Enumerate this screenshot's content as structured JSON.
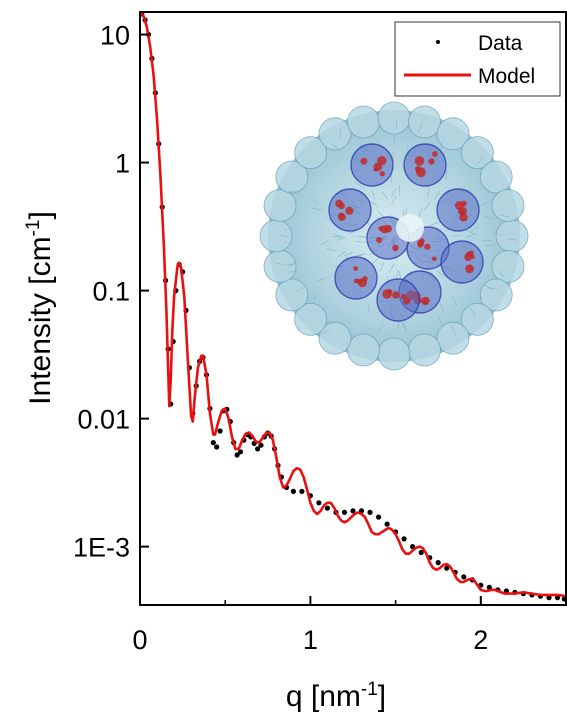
{
  "chart_data": {
    "type": "line",
    "xlabel": "q [nm",
    "xlabel_sup": "-1",
    "xlabel_end": "]",
    "ylabel": "Intensity [cm",
    "ylabel_sup": "-1",
    "ylabel_end": "]",
    "x_scale": "linear",
    "y_scale": "log",
    "xlim": [
      0,
      2.5
    ],
    "ylim": [
      0.00035,
      15
    ],
    "x_ticks": [
      0,
      1,
      2
    ],
    "x_tick_labels": [
      "0",
      "1",
      "2"
    ],
    "y_ticks": [
      0.001,
      0.01,
      0.1,
      1,
      10
    ],
    "y_tick_labels": [
      "1E-3",
      "0.01",
      "0.1",
      "1",
      "10"
    ],
    "grid": false,
    "legend": "top-right",
    "series": [
      {
        "name": "Data",
        "style": "points",
        "color": "#000000",
        "points": [
          [
            0.01,
            14.5
          ],
          [
            0.03,
            13
          ],
          [
            0.05,
            10
          ],
          [
            0.07,
            6.5
          ],
          [
            0.09,
            3.5
          ],
          [
            0.11,
            1.4
          ],
          [
            0.13,
            0.45
          ],
          [
            0.15,
            0.12
          ],
          [
            0.165,
            0.035
          ],
          [
            0.18,
            0.013
          ],
          [
            0.195,
            0.04
          ],
          [
            0.21,
            0.1
          ],
          [
            0.23,
            0.16
          ],
          [
            0.25,
            0.14
          ],
          [
            0.27,
            0.07
          ],
          [
            0.29,
            0.025
          ],
          [
            0.31,
            0.011
          ],
          [
            0.33,
            0.018
          ],
          [
            0.35,
            0.028
          ],
          [
            0.37,
            0.03
          ],
          [
            0.39,
            0.022
          ],
          [
            0.41,
            0.012
          ],
          [
            0.43,
            0.0065
          ],
          [
            0.45,
            0.006
          ],
          [
            0.47,
            0.008
          ],
          [
            0.49,
            0.0115
          ],
          [
            0.51,
            0.0118
          ],
          [
            0.53,
            0.0095
          ],
          [
            0.55,
            0.0065
          ],
          [
            0.57,
            0.0052
          ],
          [
            0.59,
            0.0055
          ],
          [
            0.61,
            0.0068
          ],
          [
            0.63,
            0.0075
          ],
          [
            0.65,
            0.0072
          ],
          [
            0.67,
            0.0064
          ],
          [
            0.69,
            0.0058
          ],
          [
            0.71,
            0.0062
          ],
          [
            0.73,
            0.0072
          ],
          [
            0.75,
            0.0077
          ],
          [
            0.77,
            0.0073
          ],
          [
            0.79,
            0.0058
          ],
          [
            0.81,
            0.0043
          ],
          [
            0.83,
            0.0035
          ],
          [
            0.86,
            0.0029
          ],
          [
            0.9,
            0.0027
          ],
          [
            0.95,
            0.0027
          ],
          [
            1.0,
            0.0025
          ],
          [
            1.05,
            0.0022
          ],
          [
            1.1,
            0.002
          ],
          [
            1.15,
            0.00185
          ],
          [
            1.2,
            0.00185
          ],
          [
            1.25,
            0.0019
          ],
          [
            1.3,
            0.0019
          ],
          [
            1.35,
            0.00185
          ],
          [
            1.4,
            0.0017
          ],
          [
            1.45,
            0.0015
          ],
          [
            1.5,
            0.0013
          ],
          [
            1.55,
            0.00115
          ],
          [
            1.6,
            0.001
          ],
          [
            1.65,
            0.0009
          ],
          [
            1.7,
            0.00082
          ],
          [
            1.75,
            0.00075
          ],
          [
            1.8,
            0.00068
          ],
          [
            1.85,
            0.00063
          ],
          [
            1.9,
            0.00058
          ],
          [
            1.95,
            0.00055
          ],
          [
            2.0,
            0.0005
          ],
          [
            2.05,
            0.00048
          ],
          [
            2.1,
            0.00046
          ],
          [
            2.15,
            0.00045
          ],
          [
            2.2,
            0.00044
          ],
          [
            2.25,
            0.00043
          ],
          [
            2.3,
            0.00042
          ],
          [
            2.35,
            0.00041
          ],
          [
            2.4,
            0.0004
          ],
          [
            2.45,
            0.0004
          ],
          [
            2.49,
            0.00039
          ]
        ]
      },
      {
        "name": "Model",
        "style": "line",
        "color": "#e8110f",
        "points": [
          [
            0.0,
            15
          ],
          [
            0.02,
            14
          ],
          [
            0.04,
            11.5
          ],
          [
            0.06,
            8
          ],
          [
            0.08,
            4.8
          ],
          [
            0.1,
            2.2
          ],
          [
            0.12,
            0.8
          ],
          [
            0.14,
            0.22
          ],
          [
            0.155,
            0.07
          ],
          [
            0.165,
            0.025
          ],
          [
            0.172,
            0.0125
          ],
          [
            0.18,
            0.02
          ],
          [
            0.19,
            0.05
          ],
          [
            0.2,
            0.09
          ],
          [
            0.22,
            0.155
          ],
          [
            0.23,
            0.165
          ],
          [
            0.24,
            0.155
          ],
          [
            0.26,
            0.09
          ],
          [
            0.28,
            0.03
          ],
          [
            0.3,
            0.0105
          ],
          [
            0.31,
            0.0095
          ],
          [
            0.32,
            0.014
          ],
          [
            0.34,
            0.025
          ],
          [
            0.36,
            0.031
          ],
          [
            0.37,
            0.031
          ],
          [
            0.39,
            0.022
          ],
          [
            0.41,
            0.011
          ],
          [
            0.43,
            0.0075
          ],
          [
            0.44,
            0.0075
          ],
          [
            0.46,
            0.0095
          ],
          [
            0.48,
            0.0115
          ],
          [
            0.5,
            0.012
          ],
          [
            0.52,
            0.01
          ],
          [
            0.54,
            0.0072
          ],
          [
            0.56,
            0.0058
          ],
          [
            0.58,
            0.0058
          ],
          [
            0.6,
            0.0068
          ],
          [
            0.62,
            0.0076
          ],
          [
            0.64,
            0.0078
          ],
          [
            0.66,
            0.0073
          ],
          [
            0.68,
            0.0066
          ],
          [
            0.7,
            0.0065
          ],
          [
            0.72,
            0.0071
          ],
          [
            0.74,
            0.0077
          ],
          [
            0.76,
            0.0078
          ],
          [
            0.78,
            0.0068
          ],
          [
            0.8,
            0.005
          ],
          [
            0.82,
            0.0035
          ],
          [
            0.84,
            0.0029
          ],
          [
            0.86,
            0.003
          ],
          [
            0.88,
            0.0034
          ],
          [
            0.9,
            0.0039
          ],
          [
            0.92,
            0.0041
          ],
          [
            0.94,
            0.004
          ],
          [
            0.96,
            0.0035
          ],
          [
            0.98,
            0.0028
          ],
          [
            1.0,
            0.0022
          ],
          [
            1.02,
            0.0019
          ],
          [
            1.04,
            0.0018
          ],
          [
            1.06,
            0.0019
          ],
          [
            1.08,
            0.0021
          ],
          [
            1.1,
            0.0022
          ],
          [
            1.12,
            0.0022
          ],
          [
            1.14,
            0.002
          ],
          [
            1.16,
            0.00175
          ],
          [
            1.18,
            0.0016
          ],
          [
            1.2,
            0.00155
          ],
          [
            1.22,
            0.0016
          ],
          [
            1.24,
            0.0017
          ],
          [
            1.26,
            0.0018
          ],
          [
            1.28,
            0.00185
          ],
          [
            1.3,
            0.0018
          ],
          [
            1.32,
            0.0017
          ],
          [
            1.34,
            0.0015
          ],
          [
            1.36,
            0.0013
          ],
          [
            1.38,
            0.00125
          ],
          [
            1.4,
            0.00125
          ],
          [
            1.42,
            0.0013
          ],
          [
            1.44,
            0.00135
          ],
          [
            1.46,
            0.0014
          ],
          [
            1.48,
            0.00135
          ],
          [
            1.5,
            0.00125
          ],
          [
            1.52,
            0.0011
          ],
          [
            1.54,
            0.00095
          ],
          [
            1.56,
            0.00088
          ],
          [
            1.58,
            0.00088
          ],
          [
            1.6,
            0.00093
          ],
          [
            1.62,
            0.00098
          ],
          [
            1.64,
            0.001
          ],
          [
            1.66,
            0.00097
          ],
          [
            1.68,
            0.00088
          ],
          [
            1.7,
            0.00075
          ],
          [
            1.72,
            0.00068
          ],
          [
            1.74,
            0.00066
          ],
          [
            1.76,
            0.00068
          ],
          [
            1.78,
            0.00072
          ],
          [
            1.8,
            0.00073
          ],
          [
            1.82,
            0.0007
          ],
          [
            1.84,
            0.00063
          ],
          [
            1.86,
            0.00056
          ],
          [
            1.88,
            0.00053
          ],
          [
            1.9,
            0.00053
          ],
          [
            1.92,
            0.00055
          ],
          [
            1.94,
            0.00056
          ],
          [
            1.96,
            0.00055
          ],
          [
            1.98,
            0.0005
          ],
          [
            2.0,
            0.00046
          ],
          [
            2.02,
            0.00045
          ],
          [
            2.04,
            0.00045
          ],
          [
            2.06,
            0.00046
          ],
          [
            2.08,
            0.00046
          ],
          [
            2.1,
            0.00045
          ],
          [
            2.14,
            0.00043
          ],
          [
            2.2,
            0.00043
          ],
          [
            2.25,
            0.00044
          ],
          [
            2.3,
            0.00043
          ],
          [
            2.35,
            0.00042
          ],
          [
            2.4,
            0.00042
          ],
          [
            2.45,
            0.00042
          ],
          [
            2.5,
            0.00041
          ]
        ]
      }
    ],
    "inset": {
      "description": "molecular structure rendering",
      "colors": {
        "shell": "#a9cfdc",
        "dark_shell": "#6aa3b8",
        "core_blue": "#2d3fb0",
        "core_red": "#c02a2a"
      }
    }
  }
}
